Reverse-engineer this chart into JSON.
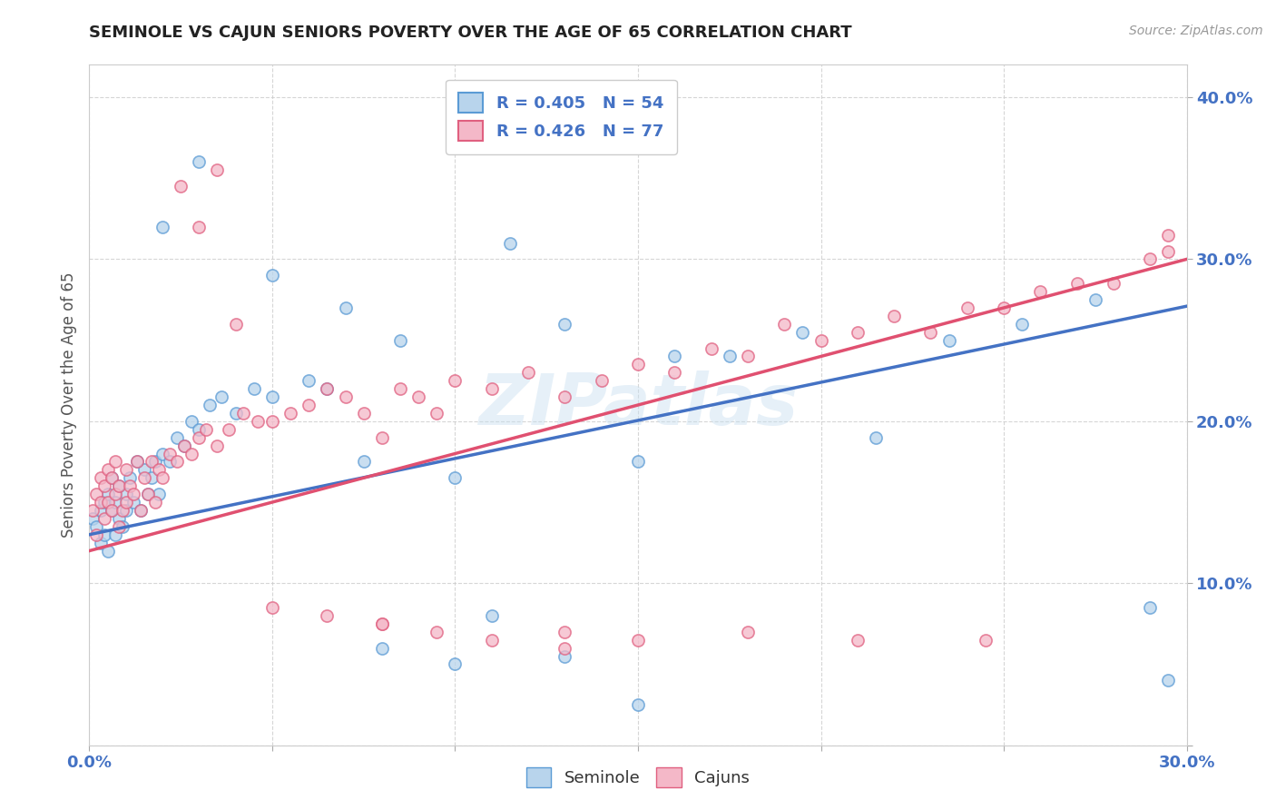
{
  "title": "SEMINOLE VS CAJUN SENIORS POVERTY OVER THE AGE OF 65 CORRELATION CHART",
  "source_text": "Source: ZipAtlas.com",
  "ylabel": "Seniors Poverty Over the Age of 65",
  "xlim": [
    0.0,
    0.3
  ],
  "ylim": [
    0.0,
    0.42
  ],
  "xtick_positions": [
    0.0,
    0.05,
    0.1,
    0.15,
    0.2,
    0.25,
    0.3
  ],
  "ytick_positions": [
    0.0,
    0.1,
    0.2,
    0.3,
    0.4
  ],
  "watermark": "ZIPatlas",
  "color_seminole_fill": "#b8d4ec",
  "color_seminole_edge": "#5b9bd5",
  "color_cajun_fill": "#f4b8c8",
  "color_cajun_edge": "#e06080",
  "color_line_seminole": "#4472c4",
  "color_line_cajun": "#e05070",
  "sem_intercept": 0.13,
  "sem_slope": 0.47,
  "caj_intercept": 0.12,
  "caj_slope": 0.6,
  "background_color": "#ffffff",
  "grid_color": "#cccccc",
  "title_color": "#222222",
  "tick_color": "#4472c4",
  "seminole_x": [
    0.001,
    0.002,
    0.003,
    0.003,
    0.004,
    0.004,
    0.005,
    0.005,
    0.006,
    0.006,
    0.007,
    0.007,
    0.008,
    0.008,
    0.009,
    0.01,
    0.01,
    0.011,
    0.012,
    0.013,
    0.014,
    0.015,
    0.016,
    0.017,
    0.018,
    0.019,
    0.02,
    0.022,
    0.024,
    0.026,
    0.028,
    0.03,
    0.033,
    0.036,
    0.04,
    0.045,
    0.05,
    0.06,
    0.065,
    0.075,
    0.085,
    0.1,
    0.115,
    0.13,
    0.15,
    0.16,
    0.175,
    0.195,
    0.215,
    0.235,
    0.255,
    0.275,
    0.29,
    0.295
  ],
  "seminole_y": [
    0.14,
    0.135,
    0.145,
    0.125,
    0.13,
    0.15,
    0.155,
    0.12,
    0.145,
    0.165,
    0.13,
    0.15,
    0.14,
    0.16,
    0.135,
    0.145,
    0.155,
    0.165,
    0.15,
    0.175,
    0.145,
    0.17,
    0.155,
    0.165,
    0.175,
    0.155,
    0.18,
    0.175,
    0.19,
    0.185,
    0.2,
    0.195,
    0.21,
    0.215,
    0.205,
    0.22,
    0.215,
    0.225,
    0.22,
    0.175,
    0.25,
    0.165,
    0.31,
    0.26,
    0.175,
    0.24,
    0.24,
    0.255,
    0.19,
    0.25,
    0.26,
    0.275,
    0.085,
    0.04
  ],
  "cajun_x": [
    0.001,
    0.002,
    0.002,
    0.003,
    0.003,
    0.004,
    0.004,
    0.005,
    0.005,
    0.006,
    0.006,
    0.007,
    0.007,
    0.008,
    0.008,
    0.009,
    0.01,
    0.01,
    0.011,
    0.012,
    0.013,
    0.014,
    0.015,
    0.016,
    0.017,
    0.018,
    0.019,
    0.02,
    0.022,
    0.024,
    0.026,
    0.028,
    0.03,
    0.032,
    0.035,
    0.038,
    0.042,
    0.046,
    0.05,
    0.055,
    0.06,
    0.065,
    0.07,
    0.075,
    0.08,
    0.085,
    0.09,
    0.095,
    0.1,
    0.11,
    0.12,
    0.13,
    0.14,
    0.15,
    0.16,
    0.17,
    0.18,
    0.19,
    0.2,
    0.21,
    0.22,
    0.23,
    0.24,
    0.25,
    0.26,
    0.27,
    0.28,
    0.29,
    0.295,
    0.295,
    0.05,
    0.065,
    0.08,
    0.095,
    0.11,
    0.13,
    0.15
  ],
  "cajun_y": [
    0.145,
    0.155,
    0.13,
    0.15,
    0.165,
    0.14,
    0.16,
    0.15,
    0.17,
    0.145,
    0.165,
    0.155,
    0.175,
    0.135,
    0.16,
    0.145,
    0.17,
    0.15,
    0.16,
    0.155,
    0.175,
    0.145,
    0.165,
    0.155,
    0.175,
    0.15,
    0.17,
    0.165,
    0.18,
    0.175,
    0.185,
    0.18,
    0.19,
    0.195,
    0.185,
    0.195,
    0.205,
    0.2,
    0.2,
    0.205,
    0.21,
    0.22,
    0.215,
    0.205,
    0.19,
    0.22,
    0.215,
    0.205,
    0.225,
    0.22,
    0.23,
    0.215,
    0.225,
    0.235,
    0.23,
    0.245,
    0.24,
    0.26,
    0.25,
    0.255,
    0.265,
    0.255,
    0.27,
    0.27,
    0.28,
    0.285,
    0.285,
    0.3,
    0.305,
    0.315,
    0.085,
    0.08,
    0.075,
    0.07,
    0.065,
    0.06,
    0.065
  ],
  "sem_extra_x": [
    0.02,
    0.03,
    0.05,
    0.07,
    0.08,
    0.1,
    0.11,
    0.13,
    0.15
  ],
  "sem_extra_y": [
    0.32,
    0.36,
    0.29,
    0.27,
    0.06,
    0.05,
    0.08,
    0.055,
    0.025
  ],
  "caj_extra_x": [
    0.025,
    0.03,
    0.035,
    0.04,
    0.08,
    0.13,
    0.18,
    0.21,
    0.245
  ],
  "caj_extra_y": [
    0.345,
    0.32,
    0.355,
    0.26,
    0.075,
    0.07,
    0.07,
    0.065,
    0.065
  ]
}
